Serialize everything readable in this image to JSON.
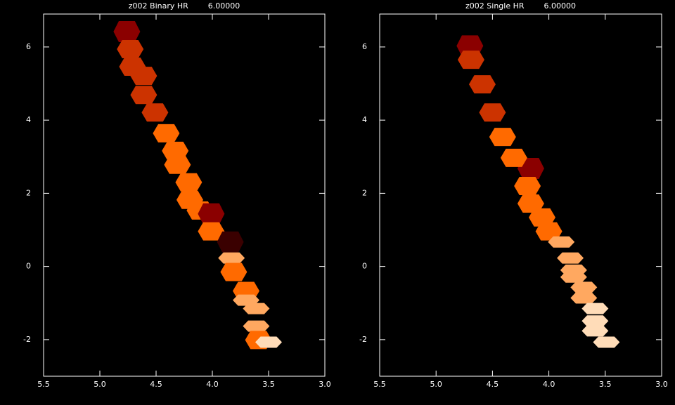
{
  "chart_data": [
    {
      "type": "density",
      "title": "z002 Binary HR        6.00000",
      "xlim": [
        5.5,
        3.0
      ],
      "ylim": [
        -3,
        6.9
      ],
      "xticks": [
        5.5,
        {
          "value": 5,
          "label": "5.0"
        },
        4.5,
        {
          "value": 4,
          "label": "4.0"
        },
        3.5,
        {
          "value": 3,
          "label": "3.0"
        }
      ],
      "yticks": [
        -2,
        0,
        2,
        4,
        6
      ],
      "level_colors": [
        "#3a0000",
        "#8b0000",
        "#cc3300",
        "#ff6a00",
        "#ffa860",
        "#ffdcb8"
      ],
      "x": [
        4.76,
        4.73,
        4.71,
        4.61,
        4.61,
        4.51,
        4.41,
        4.33,
        4.31,
        4.21,
        4.2,
        4.11,
        4.01,
        4.01,
        3.84,
        3.83,
        3.81,
        3.7,
        3.7,
        3.61,
        3.61,
        3.59,
        3.5
      ],
      "y": [
        6.42,
        5.94,
        5.46,
        5.21,
        4.69,
        4.21,
        3.64,
        3.16,
        2.78,
        2.3,
        1.82,
        1.53,
        1.44,
        0.96,
        0.67,
        0.23,
        -0.15,
        -0.67,
        -0.92,
        -1.15,
        -1.63,
        -2.01,
        -2.07
      ],
      "level": [
        1,
        2,
        2,
        2,
        2,
        2,
        3,
        3,
        3,
        3,
        3,
        3,
        1,
        3,
        0,
        4,
        3,
        3,
        4,
        4,
        4,
        3,
        5
      ]
    },
    {
      "type": "density",
      "title": "z002 Single HR        6.00000",
      "xlim": [
        5.5,
        3.0
      ],
      "ylim": [
        -3,
        6.9
      ],
      "xticks": [
        5.5,
        {
          "value": 5,
          "label": "5.0"
        },
        4.5,
        {
          "value": 4,
          "label": "4.0"
        },
        3.5,
        {
          "value": 3,
          "label": "3.0"
        }
      ],
      "yticks": [
        -2,
        0,
        2,
        4,
        6
      ],
      "level_colors": [
        "#3a0000",
        "#8b0000",
        "#cc3300",
        "#ff6a00",
        "#ffa860",
        "#ffdcb8"
      ],
      "x": [
        4.7,
        4.69,
        4.59,
        4.5,
        4.16,
        4.41,
        4.31,
        4.19,
        4.16,
        4.06,
        4.0,
        3.89,
        3.81,
        3.78,
        3.78,
        3.69,
        3.69,
        3.59,
        3.59,
        3.59,
        3.49
      ],
      "y": [
        6.03,
        5.65,
        4.98,
        4.21,
        2.68,
        3.54,
        2.97,
        2.2,
        1.72,
        1.34,
        0.96,
        0.67,
        0.23,
        -0.1,
        -0.29,
        -0.57,
        -0.86,
        -1.15,
        -1.49,
        -1.76,
        -2.07
      ],
      "level": [
        1,
        2,
        2,
        2,
        1,
        3,
        3,
        3,
        3,
        3,
        3,
        4,
        4,
        4,
        4,
        4,
        4,
        5,
        5,
        5,
        5
      ]
    }
  ]
}
